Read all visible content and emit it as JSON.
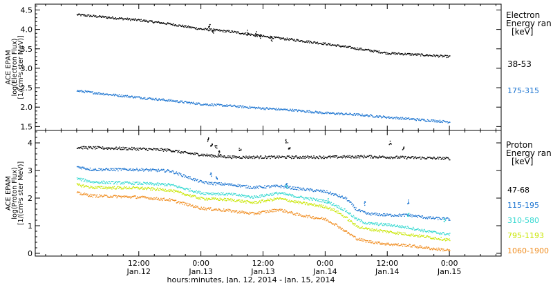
{
  "chart_data": [
    {
      "type": "scatter",
      "panel": "electron",
      "ylabel_lines": [
        "ACE EPAM",
        "log(Electron Flux)",
        "[1/(cm²s ster MeV)]"
      ],
      "ylim": [
        1.4,
        4.65
      ],
      "yticks": [
        1.5,
        2.0,
        2.5,
        3.0,
        3.5,
        4.0,
        4.5
      ],
      "legend_title": [
        "Electron",
        "Energy ran",
        "[keV]"
      ],
      "series": [
        {
          "name": "38-53",
          "color": "#000000",
          "points": [
            [
              0,
              4.39
            ],
            [
              6,
              4.32
            ],
            [
              12,
              4.25
            ],
            [
              18,
              4.15
            ],
            [
              24,
              4.02
            ],
            [
              30,
              3.95
            ],
            [
              36,
              3.83
            ],
            [
              42,
              3.74
            ],
            [
              48,
              3.64
            ],
            [
              54,
              3.52
            ],
            [
              60,
              3.4
            ],
            [
              66,
              3.36
            ],
            [
              72,
              3.31
            ]
          ],
          "spikes": [
            [
              25.5,
              4.18
            ],
            [
              26.2,
              4.05
            ],
            [
              33,
              4.0
            ],
            [
              34.6,
              3.96
            ],
            [
              35.3,
              3.9
            ],
            [
              37.5,
              3.85
            ]
          ]
        },
        {
          "name": "175-315",
          "color": "#1a73d0",
          "points": [
            [
              0,
              2.43
            ],
            [
              6,
              2.34
            ],
            [
              12,
              2.26
            ],
            [
              18,
              2.18
            ],
            [
              24,
              2.09
            ],
            [
              30,
              2.04
            ],
            [
              36,
              1.98
            ],
            [
              42,
              1.93
            ],
            [
              48,
              1.86
            ],
            [
              54,
              1.82
            ],
            [
              60,
              1.75
            ],
            [
              66,
              1.69
            ],
            [
              72,
              1.63
            ]
          ]
        }
      ]
    },
    {
      "type": "scatter",
      "panel": "proton",
      "ylabel_lines": [
        "ACE EPAM",
        "log(Proton Flux)",
        "[1/(cm²s ster MeV)]"
      ],
      "ylim": [
        -0.1,
        4.45
      ],
      "yticks": [
        0,
        1,
        2,
        3,
        4
      ],
      "legend_title": [
        "Proton",
        "Energy ran",
        "[keV]"
      ],
      "series": [
        {
          "name": "47-68",
          "color": "#000000",
          "points": [
            [
              0,
              3.85
            ],
            [
              12,
              3.8
            ],
            [
              18,
              3.75
            ],
            [
              21,
              3.65
            ],
            [
              26,
              3.55
            ],
            [
              30,
              3.5
            ],
            [
              36,
              3.5
            ],
            [
              44,
              3.5
            ],
            [
              48,
              3.5
            ],
            [
              56,
              3.52
            ],
            [
              60,
              3.5
            ],
            [
              72,
              3.45
            ]
          ],
          "spikes": [
            [
              25.3,
              4.2
            ],
            [
              26,
              4.0
            ],
            [
              26.8,
              3.95
            ],
            [
              27.5,
              3.75
            ],
            [
              31.5,
              3.85
            ],
            [
              40.5,
              4.15
            ],
            [
              41,
              3.9
            ],
            [
              60.5,
              4.1
            ],
            [
              63,
              3.9
            ]
          ]
        },
        {
          "name": "115-195",
          "color": "#1a73d0",
          "points": [
            [
              0,
              3.15
            ],
            [
              3,
              3.05
            ],
            [
              12,
              3.05
            ],
            [
              18,
              3.0
            ],
            [
              21,
              2.8
            ],
            [
              24,
              2.6
            ],
            [
              26,
              2.55
            ],
            [
              30,
              2.5
            ],
            [
              34,
              2.4
            ],
            [
              39,
              2.45
            ],
            [
              43,
              2.35
            ],
            [
              48,
              2.25
            ],
            [
              52,
              2.0
            ],
            [
              54,
              1.6
            ],
            [
              56,
              1.45
            ],
            [
              60,
              1.4
            ],
            [
              64,
              1.4
            ],
            [
              68,
              1.3
            ],
            [
              72,
              1.25
            ]
          ],
          "spikes": [
            [
              25.8,
              2.95
            ],
            [
              27,
              2.8
            ],
            [
              40.5,
              2.6
            ],
            [
              55.5,
              1.9
            ],
            [
              64,
              1.95
            ]
          ]
        },
        {
          "name": "310-580",
          "color": "#33d8d0",
          "points": [
            [
              0,
              2.72
            ],
            [
              3,
              2.6
            ],
            [
              12,
              2.55
            ],
            [
              18,
              2.5
            ],
            [
              21,
              2.35
            ],
            [
              24,
              2.2
            ],
            [
              30,
              2.15
            ],
            [
              34,
              2.05
            ],
            [
              39,
              2.2
            ],
            [
              43,
              2.05
            ],
            [
              48,
              1.9
            ],
            [
              50,
              1.75
            ],
            [
              52,
              1.55
            ],
            [
              54,
              1.25
            ],
            [
              56,
              1.1
            ],
            [
              60,
              1.05
            ],
            [
              64,
              0.95
            ],
            [
              68,
              0.8
            ],
            [
              72,
              0.7
            ]
          ],
          "spikes": [
            [
              40.5,
              2.5
            ],
            [
              48.5,
              2.0
            ],
            [
              64,
              1.5
            ],
            [
              71,
              1.3
            ]
          ]
        },
        {
          "name": "795-1193",
          "color": "#c8e600",
          "points": [
            [
              0,
              2.5
            ],
            [
              3,
              2.4
            ],
            [
              12,
              2.38
            ],
            [
              18,
              2.3
            ],
            [
              21,
              2.15
            ],
            [
              24,
              2.0
            ],
            [
              30,
              1.95
            ],
            [
              34,
              1.85
            ],
            [
              39,
              2.0
            ],
            [
              43,
              1.85
            ],
            [
              48,
              1.7
            ],
            [
              50,
              1.55
            ],
            [
              52,
              1.3
            ],
            [
              54,
              1.0
            ],
            [
              56,
              0.9
            ],
            [
              60,
              0.8
            ],
            [
              64,
              0.7
            ],
            [
              68,
              0.6
            ],
            [
              72,
              0.5
            ]
          ]
        },
        {
          "name": "1060-1900",
          "color": "#f08c1e",
          "points": [
            [
              0,
              2.2
            ],
            [
              3,
              2.1
            ],
            [
              12,
              2.05
            ],
            [
              18,
              1.95
            ],
            [
              21,
              1.8
            ],
            [
              24,
              1.65
            ],
            [
              30,
              1.55
            ],
            [
              34,
              1.45
            ],
            [
              39,
              1.6
            ],
            [
              43,
              1.4
            ],
            [
              48,
              1.25
            ],
            [
              50,
              1.05
            ],
            [
              52,
              0.8
            ],
            [
              54,
              0.55
            ],
            [
              56,
              0.45
            ],
            [
              60,
              0.35
            ],
            [
              64,
              0.3
            ],
            [
              68,
              0.2
            ],
            [
              72,
              0.12
            ]
          ]
        }
      ]
    }
  ],
  "x_axis": {
    "range_hours": [
      -8,
      82
    ],
    "ticks": [
      {
        "hour": 12,
        "time": "12:00",
        "date": "Jan.12"
      },
      {
        "hour": 24,
        "time": "0:00",
        "date": "Jan.13"
      },
      {
        "hour": 36,
        "time": "12:00",
        "date": "Jan.13"
      },
      {
        "hour": 48,
        "time": "0:00",
        "date": "Jan.14"
      },
      {
        "hour": 60,
        "time": "12:00",
        "date": "Jan.14"
      },
      {
        "hour": 72,
        "time": "0:00",
        "date": "Jan.15"
      }
    ],
    "minor_every_hours": 3,
    "xlabel": "hours:minutes, Jan. 12, 2014 - Jan. 15, 2014"
  }
}
